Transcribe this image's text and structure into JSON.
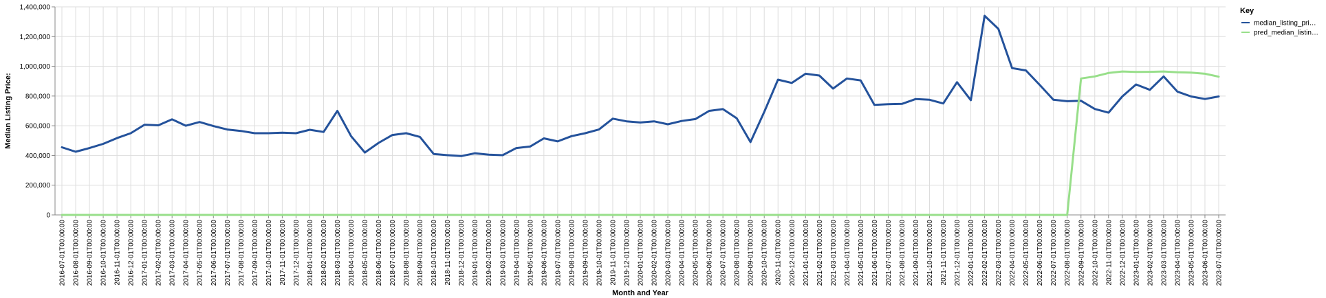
{
  "chart_data": {
    "type": "line",
    "xlabel": "Month and Year",
    "ylabel": "Median Listing Price:",
    "ylim": [
      0,
      1400000
    ],
    "y_ticks": [
      0,
      200000,
      400000,
      600000,
      800000,
      1000000,
      1200000,
      1400000
    ],
    "y_tick_labels": [
      "0",
      "200,000",
      "400,000",
      "600,000",
      "800,000",
      "1,000,000",
      "1,200,000",
      "1,400,000"
    ],
    "grid": true,
    "legend": {
      "title": "Key",
      "position": "right"
    },
    "x": [
      "2016-07-01T00:00:00",
      "2016-08-01T00:00:00",
      "2016-09-01T00:00:00",
      "2016-10-01T00:00:00",
      "2016-11-01T00:00:00",
      "2016-12-01T00:00:00",
      "2017-01-01T00:00:00",
      "2017-02-01T00:00:00",
      "2017-03-01T00:00:00",
      "2017-04-01T00:00:00",
      "2017-05-01T00:00:00",
      "2017-06-01T00:00:00",
      "2017-07-01T00:00:00",
      "2017-08-01T00:00:00",
      "2017-09-01T00:00:00",
      "2017-10-01T00:00:00",
      "2017-11-01T00:00:00",
      "2017-12-01T00:00:00",
      "2018-01-01T00:00:00",
      "2018-02-01T00:00:00",
      "2018-03-01T00:00:00",
      "2018-04-01T00:00:00",
      "2018-05-01T00:00:00",
      "2018-06-01T00:00:00",
      "2018-07-01T00:00:00",
      "2018-08-01T00:00:00",
      "2018-09-01T00:00:00",
      "2018-10-01T00:00:00",
      "2018-11-01T00:00:00",
      "2018-12-01T00:00:00",
      "2019-01-01T00:00:00",
      "2019-02-01T00:00:00",
      "2019-03-01T00:00:00",
      "2019-04-01T00:00:00",
      "2019-05-01T00:00:00",
      "2019-06-01T00:00:00",
      "2019-07-01T00:00:00",
      "2019-08-01T00:00:00",
      "2019-09-01T00:00:00",
      "2019-10-01T00:00:00",
      "2019-11-01T00:00:00",
      "2019-12-01T00:00:00",
      "2020-01-01T00:00:00",
      "2020-02-01T00:00:00",
      "2020-03-01T00:00:00",
      "2020-04-01T00:00:00",
      "2020-05-01T00:00:00",
      "2020-06-01T00:00:00",
      "2020-07-01T00:00:00",
      "2020-08-01T00:00:00",
      "2020-09-01T00:00:00",
      "2020-10-01T00:00:00",
      "2020-11-01T00:00:00",
      "2020-12-01T00:00:00",
      "2021-01-01T00:00:00",
      "2021-02-01T00:00:00",
      "2021-03-01T00:00:00",
      "2021-04-01T00:00:00",
      "2021-05-01T00:00:00",
      "2021-06-01T00:00:00",
      "2021-07-01T00:00:00",
      "2021-08-01T00:00:00",
      "2021-09-01T00:00:00",
      "2021-10-01T00:00:00",
      "2021-11-01T00:00:00",
      "2021-12-01T00:00:00",
      "2022-01-01T00:00:00",
      "2022-02-01T00:00:00",
      "2022-03-01T00:00:00",
      "2022-04-01T00:00:00",
      "2022-05-01T00:00:00",
      "2022-06-01T00:00:00",
      "2022-07-01T00:00:00",
      "2022-08-01T00:00:00",
      "2022-09-01T00:00:00",
      "2022-10-01T00:00:00",
      "2022-11-01T00:00:00",
      "2022-12-01T00:00:00",
      "2023-01-01T00:00:00",
      "2023-02-01T00:00:00",
      "2023-03-01T00:00:00",
      "2023-04-01T00:00:00",
      "2023-05-01T00:00:00",
      "2023-06-01T00:00:00",
      "2023-07-01T00:00:00"
    ],
    "series": [
      {
        "name": "median_listing_pri…",
        "color": "#24529b",
        "values": [
          455000,
          425000,
          450000,
          478000,
          517000,
          550000,
          607000,
          603000,
          643000,
          600000,
          625000,
          598000,
          575000,
          565000,
          550000,
          550000,
          553000,
          550000,
          573000,
          558000,
          700000,
          530000,
          420000,
          485000,
          538000,
          550000,
          525000,
          410000,
          402000,
          396000,
          415000,
          405000,
          402000,
          450000,
          460000,
          515000,
          495000,
          530000,
          550000,
          575000,
          648000,
          630000,
          622000,
          630000,
          610000,
          632000,
          645000,
          700000,
          712000,
          650000,
          490000,
          693000,
          910000,
          888000,
          950000,
          938000,
          850000,
          918000,
          905000,
          740000,
          745000,
          747000,
          780000,
          775000,
          750000,
          893000,
          772000,
          1340000,
          1252000,
          988000,
          972000,
          875000,
          775000,
          765000,
          768000,
          713000,
          688000,
          797000,
          878000,
          842000,
          932000,
          830000,
          797000,
          780000,
          797000
        ]
      },
      {
        "name": "pred_median_listin…",
        "color": "#98df8a",
        "values": [
          0,
          0,
          0,
          0,
          0,
          0,
          0,
          0,
          0,
          0,
          0,
          0,
          0,
          0,
          0,
          0,
          0,
          0,
          0,
          0,
          0,
          0,
          0,
          0,
          0,
          0,
          0,
          0,
          0,
          0,
          0,
          0,
          0,
          0,
          0,
          0,
          0,
          0,
          0,
          0,
          0,
          0,
          0,
          0,
          0,
          0,
          0,
          0,
          0,
          0,
          0,
          0,
          0,
          0,
          0,
          0,
          0,
          0,
          0,
          0,
          0,
          0,
          0,
          0,
          0,
          0,
          0,
          0,
          0,
          0,
          0,
          0,
          0,
          0,
          918000,
          932000,
          955000,
          965000,
          962000,
          963000,
          965000,
          960000,
          958000,
          950000,
          930000
        ]
      }
    ]
  }
}
